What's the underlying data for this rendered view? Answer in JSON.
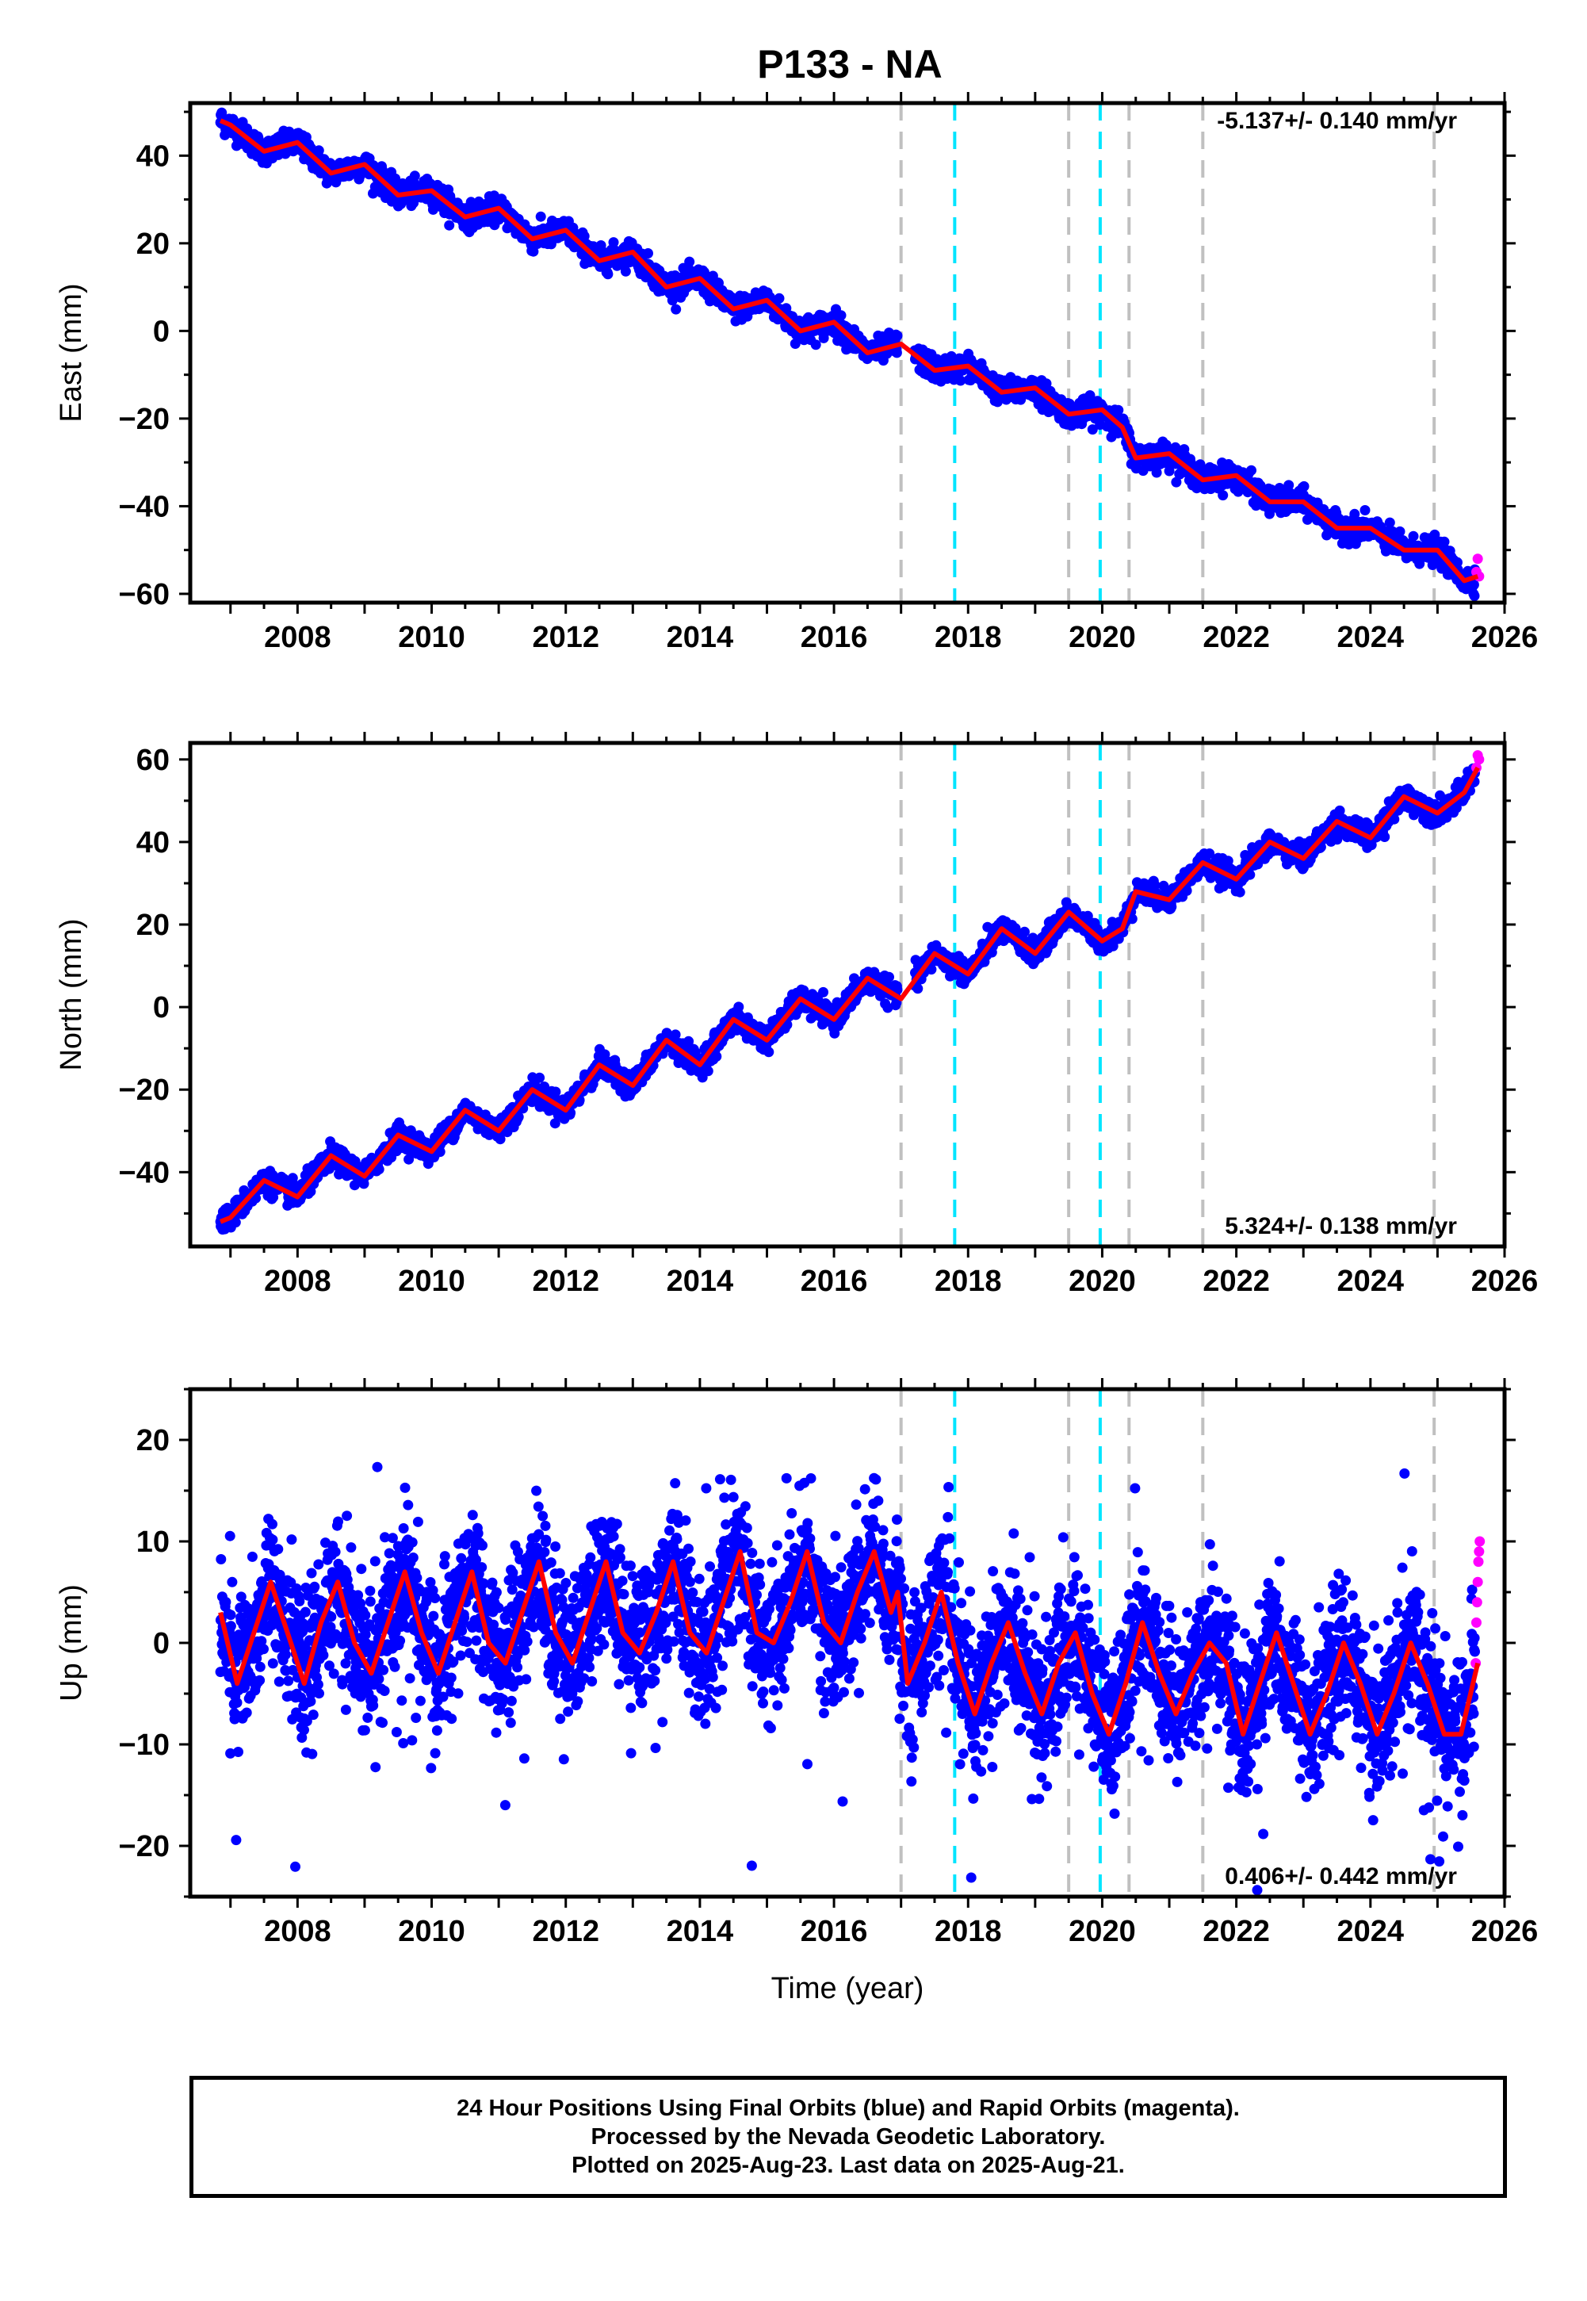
{
  "title": "P133 - NA",
  "footer": {
    "line1": "24 Hour Positions Using Final Orbits (blue) and Rapid Orbits (magenta).",
    "line2": "Processed by the Nevada Geodetic Laboratory.",
    "line3": "Plotted on 2025-Aug-23. Last data on 2025-Aug-21."
  },
  "colors": {
    "final_orbits": "#0000ff",
    "rapid_orbits": "#ff00ff",
    "model_fit": "#ff0000",
    "event_gray": "#c0c0c0",
    "event_cyan": "#00e5ff"
  },
  "chart_data": [
    {
      "type": "scatter",
      "ylabel": "East (mm)",
      "xlabel": "",
      "xlim": [
        2006.4,
        2026.0
      ],
      "ylim": [
        -62,
        52
      ],
      "xticks": [
        2008,
        2010,
        2012,
        2014,
        2016,
        2018,
        2020,
        2022,
        2024,
        2026
      ],
      "yticks": [
        -60,
        -40,
        -20,
        0,
        20,
        40
      ],
      "rate_label": "-5.137+/- 0.140 mm/yr",
      "rate_label_position": "top-right",
      "gray_events": [
        2017.0,
        2019.5,
        2020.4,
        2021.5,
        2024.95
      ],
      "cyan_events": [
        2017.8,
        2019.97
      ],
      "series": [
        {
          "role": "model",
          "x": [
            2006.85,
            2007.0,
            2007.5,
            2008.0,
            2008.5,
            2009.0,
            2009.5,
            2010.0,
            2010.5,
            2011.0,
            2011.5,
            2012.0,
            2012.5,
            2013.0,
            2013.5,
            2014.0,
            2014.5,
            2015.0,
            2015.5,
            2016.0,
            2016.5,
            2017.0,
            2017.5,
            2018.0,
            2018.5,
            2019.0,
            2019.5,
            2020.0,
            2020.3,
            2020.5,
            2021.0,
            2021.5,
            2022.0,
            2022.5,
            2023.0,
            2023.5,
            2024.0,
            2024.5,
            2025.0,
            2025.4,
            2025.6
          ],
          "y": [
            48,
            47,
            41,
            43,
            36,
            38,
            31,
            32,
            26,
            28,
            21,
            23,
            16,
            18,
            10,
            12,
            5,
            7,
            0,
            2,
            -5,
            -3,
            -9,
            -8,
            -14,
            -13,
            -19,
            -18,
            -22,
            -29,
            -28,
            -34,
            -33,
            -39,
            -39,
            -45,
            -45,
            -50,
            -50,
            -57,
            -56
          ]
        },
        {
          "role": "final_orbits",
          "description": "blue daily positions scattered around the model, ~2-3 mm spread"
        },
        {
          "role": "rapid_orbits",
          "x": [
            2025.58,
            2025.6,
            2025.62
          ],
          "y": [
            -55,
            -52,
            -56
          ]
        }
      ]
    },
    {
      "type": "scatter",
      "ylabel": "North (mm)",
      "xlabel": "",
      "xlim": [
        2006.4,
        2026.0
      ],
      "ylim": [
        -58,
        64
      ],
      "xticks": [
        2008,
        2010,
        2012,
        2014,
        2016,
        2018,
        2020,
        2022,
        2024,
        2026
      ],
      "yticks": [
        -40,
        -20,
        0,
        20,
        40,
        60
      ],
      "rate_label": "5.324+/- 0.138 mm/yr",
      "rate_label_position": "bottom-right",
      "gray_events": [
        2017.0,
        2019.5,
        2020.4,
        2021.5,
        2024.95
      ],
      "cyan_events": [
        2017.8,
        2019.97
      ],
      "series": [
        {
          "role": "model",
          "x": [
            2006.85,
            2007.0,
            2007.5,
            2008.0,
            2008.5,
            2009.0,
            2009.5,
            2010.0,
            2010.5,
            2011.0,
            2011.5,
            2012.0,
            2012.5,
            2013.0,
            2013.5,
            2014.0,
            2014.5,
            2015.0,
            2015.5,
            2016.0,
            2016.5,
            2017.0,
            2017.5,
            2018.0,
            2018.5,
            2019.0,
            2019.5,
            2020.0,
            2020.3,
            2020.5,
            2021.0,
            2021.5,
            2022.0,
            2022.5,
            2023.0,
            2023.5,
            2024.0,
            2024.5,
            2025.0,
            2025.4,
            2025.6
          ],
          "y": [
            -52,
            -51,
            -42,
            -46,
            -36,
            -41,
            -31,
            -35,
            -25,
            -30,
            -20,
            -25,
            -14,
            -19,
            -8,
            -14,
            -3,
            -8,
            2,
            -3,
            7,
            2,
            13,
            8,
            19,
            13,
            23,
            16,
            19,
            28,
            26,
            35,
            31,
            40,
            36,
            45,
            41,
            51,
            47,
            52,
            58
          ]
        },
        {
          "role": "final_orbits",
          "description": "blue daily positions scattered around the model, ~2-3 mm spread"
        },
        {
          "role": "rapid_orbits",
          "x": [
            2025.58,
            2025.6,
            2025.62
          ],
          "y": [
            58,
            61,
            60
          ]
        }
      ]
    },
    {
      "type": "scatter",
      "ylabel": "Up (mm)",
      "xlabel": "Time (year)",
      "xlim": [
        2006.4,
        2026.0
      ],
      "ylim": [
        -25,
        25
      ],
      "xticks": [
        2008,
        2010,
        2012,
        2014,
        2016,
        2018,
        2020,
        2022,
        2024,
        2026
      ],
      "yticks": [
        -20,
        -10,
        0,
        10,
        20
      ],
      "rate_label": "0.406+/- 0.442 mm/yr",
      "rate_label_position": "bottom-right",
      "gray_events": [
        2017.0,
        2019.5,
        2020.4,
        2021.5,
        2024.95
      ],
      "cyan_events": [
        2017.8,
        2019.97
      ],
      "series": [
        {
          "role": "model",
          "x": [
            2006.85,
            2007.1,
            2007.35,
            2007.6,
            2007.85,
            2008.1,
            2008.35,
            2008.6,
            2008.85,
            2009.1,
            2009.35,
            2009.6,
            2009.85,
            2010.1,
            2010.35,
            2010.6,
            2010.85,
            2011.1,
            2011.35,
            2011.6,
            2011.85,
            2012.1,
            2012.35,
            2012.6,
            2012.85,
            2013.1,
            2013.35,
            2013.6,
            2013.85,
            2014.1,
            2014.35,
            2014.6,
            2014.85,
            2015.1,
            2015.35,
            2015.6,
            2015.85,
            2016.1,
            2016.35,
            2016.6,
            2016.85,
            2016.95,
            2017.1,
            2017.35,
            2017.6,
            2017.85,
            2018.1,
            2018.35,
            2018.6,
            2018.85,
            2019.1,
            2019.35,
            2019.6,
            2019.85,
            2020.1,
            2020.35,
            2020.6,
            2020.85,
            2021.1,
            2021.35,
            2021.6,
            2021.85,
            2022.1,
            2022.35,
            2022.6,
            2022.85,
            2023.1,
            2023.35,
            2023.6,
            2023.85,
            2024.1,
            2024.35,
            2024.6,
            2024.85,
            2025.1,
            2025.35,
            2025.6
          ],
          "y": [
            3,
            -4,
            1,
            6,
            1,
            -4,
            2,
            6,
            0,
            -3,
            2,
            7,
            1,
            -3,
            2,
            7,
            0,
            -2,
            3,
            8,
            1,
            -2,
            3,
            8,
            1,
            -1,
            3,
            8,
            1,
            -1,
            4,
            9,
            1,
            0,
            4,
            9,
            2,
            0,
            5,
            9,
            3,
            5,
            -4,
            0,
            5,
            -2,
            -7,
            -2,
            2,
            -3,
            -7,
            -2,
            1,
            -5,
            -9,
            -4,
            2,
            -3,
            -7,
            -3,
            0,
            -2,
            -9,
            -4,
            1,
            -4,
            -9,
            -5,
            0,
            -4,
            -9,
            -5,
            0,
            -4,
            -9,
            -9,
            -2
          ]
        },
        {
          "role": "final_orbits",
          "description": "blue daily positions, ~4-6 mm spread with outliers up to +/-20 mm"
        },
        {
          "role": "rapid_orbits",
          "x": [
            2025.57,
            2025.58,
            2025.59,
            2025.6,
            2025.61,
            2025.62,
            2025.63
          ],
          "y": [
            -2,
            2,
            4,
            6,
            8,
            9,
            10
          ]
        }
      ]
    }
  ]
}
